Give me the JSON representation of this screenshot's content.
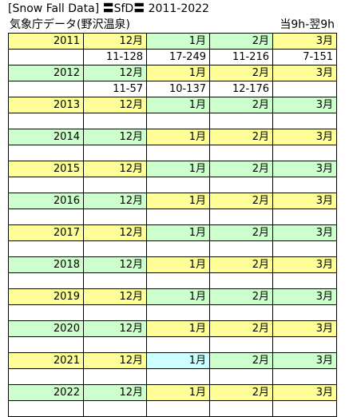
{
  "header": {
    "title": "[Snow Fall Data] 〓SfD〓 2011-2022",
    "subtitle": "気象庁データ(野沢温泉)",
    "note": "当9h-翌9h"
  },
  "colors": {
    "yellow": "#ffff99",
    "green": "#ccffcc",
    "cyan": "#ccffff",
    "white": "#ffffff"
  },
  "rows": [
    {
      "type": "year",
      "cells": [
        {
          "text": "2011",
          "bg": "yellow"
        },
        {
          "text": "12月",
          "bg": "yellow"
        },
        {
          "text": "1月",
          "bg": "green"
        },
        {
          "text": "2月",
          "bg": "green"
        },
        {
          "text": "3月",
          "bg": "yellow"
        }
      ]
    },
    {
      "type": "data",
      "cells": [
        {
          "text": "",
          "bg": "white"
        },
        {
          "text": "11-128",
          "bg": "white"
        },
        {
          "text": "17-249",
          "bg": "white"
        },
        {
          "text": "11-216",
          "bg": "white"
        },
        {
          "text": "7-151",
          "bg": "white"
        }
      ]
    },
    {
      "type": "year",
      "cells": [
        {
          "text": "2012",
          "bg": "green"
        },
        {
          "text": "12月",
          "bg": "green"
        },
        {
          "text": "1月",
          "bg": "yellow"
        },
        {
          "text": "2月",
          "bg": "yellow"
        },
        {
          "text": "3月",
          "bg": "yellow"
        }
      ]
    },
    {
      "type": "data",
      "cells": [
        {
          "text": "",
          "bg": "white"
        },
        {
          "text": "11-57",
          "bg": "white"
        },
        {
          "text": "10-137",
          "bg": "white"
        },
        {
          "text": "12-176",
          "bg": "white"
        },
        {
          "text": "",
          "bg": "white"
        }
      ]
    },
    {
      "type": "year",
      "cells": [
        {
          "text": "2013",
          "bg": "yellow"
        },
        {
          "text": "12月",
          "bg": "yellow"
        },
        {
          "text": "1月",
          "bg": "green"
        },
        {
          "text": "2月",
          "bg": "green"
        },
        {
          "text": "3月",
          "bg": "green"
        }
      ]
    },
    {
      "type": "data",
      "cells": [
        {
          "text": "",
          "bg": "white"
        },
        {
          "text": "",
          "bg": "white"
        },
        {
          "text": "",
          "bg": "white"
        },
        {
          "text": "",
          "bg": "white"
        },
        {
          "text": "",
          "bg": "white"
        }
      ]
    },
    {
      "type": "year",
      "cells": [
        {
          "text": "2014",
          "bg": "green"
        },
        {
          "text": "12月",
          "bg": "green"
        },
        {
          "text": "1月",
          "bg": "yellow"
        },
        {
          "text": "2月",
          "bg": "yellow"
        },
        {
          "text": "3月",
          "bg": "yellow"
        }
      ]
    },
    {
      "type": "data",
      "cells": [
        {
          "text": "",
          "bg": "white"
        },
        {
          "text": "",
          "bg": "white"
        },
        {
          "text": "",
          "bg": "white"
        },
        {
          "text": "",
          "bg": "white"
        },
        {
          "text": "",
          "bg": "white"
        }
      ]
    },
    {
      "type": "year",
      "cells": [
        {
          "text": "2015",
          "bg": "yellow"
        },
        {
          "text": "12月",
          "bg": "yellow"
        },
        {
          "text": "1月",
          "bg": "green"
        },
        {
          "text": "2月",
          "bg": "green"
        },
        {
          "text": "3月",
          "bg": "green"
        }
      ]
    },
    {
      "type": "data",
      "cells": [
        {
          "text": "",
          "bg": "white"
        },
        {
          "text": "",
          "bg": "white"
        },
        {
          "text": "",
          "bg": "white"
        },
        {
          "text": "",
          "bg": "white"
        },
        {
          "text": "",
          "bg": "white"
        }
      ]
    },
    {
      "type": "year",
      "cells": [
        {
          "text": "2016",
          "bg": "green"
        },
        {
          "text": "12月",
          "bg": "green"
        },
        {
          "text": "1月",
          "bg": "yellow"
        },
        {
          "text": "2月",
          "bg": "yellow"
        },
        {
          "text": "3月",
          "bg": "yellow"
        }
      ]
    },
    {
      "type": "data",
      "cells": [
        {
          "text": "",
          "bg": "white"
        },
        {
          "text": "",
          "bg": "white"
        },
        {
          "text": "",
          "bg": "white"
        },
        {
          "text": "",
          "bg": "white"
        },
        {
          "text": "",
          "bg": "white"
        }
      ]
    },
    {
      "type": "year",
      "cells": [
        {
          "text": "2017",
          "bg": "yellow"
        },
        {
          "text": "12月",
          "bg": "yellow"
        },
        {
          "text": "1月",
          "bg": "green"
        },
        {
          "text": "2月",
          "bg": "green"
        },
        {
          "text": "3月",
          "bg": "green"
        }
      ]
    },
    {
      "type": "data",
      "cells": [
        {
          "text": "",
          "bg": "white"
        },
        {
          "text": "",
          "bg": "white"
        },
        {
          "text": "",
          "bg": "white"
        },
        {
          "text": "",
          "bg": "white"
        },
        {
          "text": "",
          "bg": "white"
        }
      ]
    },
    {
      "type": "year",
      "cells": [
        {
          "text": "2018",
          "bg": "green"
        },
        {
          "text": "12月",
          "bg": "green"
        },
        {
          "text": "1月",
          "bg": "yellow"
        },
        {
          "text": "2月",
          "bg": "yellow"
        },
        {
          "text": "3月",
          "bg": "yellow"
        }
      ]
    },
    {
      "type": "data",
      "cells": [
        {
          "text": "",
          "bg": "white"
        },
        {
          "text": "",
          "bg": "white"
        },
        {
          "text": "",
          "bg": "white"
        },
        {
          "text": "",
          "bg": "white"
        },
        {
          "text": "",
          "bg": "white"
        }
      ]
    },
    {
      "type": "year",
      "cells": [
        {
          "text": "2019",
          "bg": "yellow"
        },
        {
          "text": "12月",
          "bg": "yellow"
        },
        {
          "text": "1月",
          "bg": "green"
        },
        {
          "text": "2月",
          "bg": "green"
        },
        {
          "text": "3月",
          "bg": "green"
        }
      ]
    },
    {
      "type": "data",
      "cells": [
        {
          "text": "",
          "bg": "white"
        },
        {
          "text": "",
          "bg": "white"
        },
        {
          "text": "",
          "bg": "white"
        },
        {
          "text": "",
          "bg": "white"
        },
        {
          "text": "",
          "bg": "white"
        }
      ]
    },
    {
      "type": "year",
      "cells": [
        {
          "text": "2020",
          "bg": "green"
        },
        {
          "text": "12月",
          "bg": "green"
        },
        {
          "text": "1月",
          "bg": "yellow"
        },
        {
          "text": "2月",
          "bg": "yellow"
        },
        {
          "text": "3月",
          "bg": "yellow"
        }
      ]
    },
    {
      "type": "data",
      "cells": [
        {
          "text": "",
          "bg": "white"
        },
        {
          "text": "",
          "bg": "white"
        },
        {
          "text": "",
          "bg": "white"
        },
        {
          "text": "",
          "bg": "white"
        },
        {
          "text": "",
          "bg": "white"
        }
      ]
    },
    {
      "type": "year",
      "cells": [
        {
          "text": "2021",
          "bg": "yellow"
        },
        {
          "text": "12月",
          "bg": "yellow"
        },
        {
          "text": "1月",
          "bg": "cyan"
        },
        {
          "text": "2月",
          "bg": "green"
        },
        {
          "text": "3月",
          "bg": "green"
        }
      ]
    },
    {
      "type": "data",
      "cells": [
        {
          "text": "",
          "bg": "white"
        },
        {
          "text": "",
          "bg": "white"
        },
        {
          "text": "",
          "bg": "white"
        },
        {
          "text": "",
          "bg": "white"
        },
        {
          "text": "",
          "bg": "white"
        }
      ]
    },
    {
      "type": "year",
      "cells": [
        {
          "text": "2022",
          "bg": "green"
        },
        {
          "text": "12月",
          "bg": "green"
        },
        {
          "text": "1月",
          "bg": "yellow"
        },
        {
          "text": "2月",
          "bg": "yellow"
        },
        {
          "text": "3月",
          "bg": "yellow"
        }
      ]
    },
    {
      "type": "data",
      "cells": [
        {
          "text": "",
          "bg": "white"
        },
        {
          "text": "",
          "bg": "white"
        },
        {
          "text": "",
          "bg": "white"
        },
        {
          "text": "",
          "bg": "white"
        },
        {
          "text": "",
          "bg": "white"
        }
      ]
    }
  ]
}
